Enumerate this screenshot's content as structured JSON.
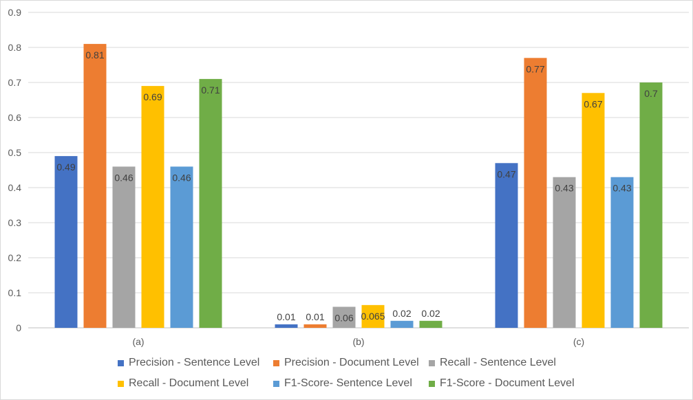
{
  "chart_data": {
    "type": "bar",
    "title": "",
    "xlabel": "",
    "ylabel": "",
    "ylim": [
      0,
      0.9
    ],
    "yticks": [
      "0",
      "0.1",
      "0.2",
      "0.3",
      "0.4",
      "0.5",
      "0.6",
      "0.7",
      "0.8",
      "0.9"
    ],
    "grid": true,
    "legend_position": "bottom",
    "categories": [
      "(a)",
      "(b)",
      "(c)"
    ],
    "series": [
      {
        "name": "Precision - Sentence Level",
        "color": "#4472c4",
        "values": [
          0.49,
          0.01,
          0.47
        ],
        "labels": [
          "0.49",
          "0.01",
          "0.47"
        ]
      },
      {
        "name": "Precision - Document Level",
        "color": "#ed7d31",
        "values": [
          0.81,
          0.01,
          0.77
        ],
        "labels": [
          "0.81",
          "0.01",
          "0.77"
        ]
      },
      {
        "name": "Recall - Sentence Level",
        "color": "#a5a5a5",
        "values": [
          0.46,
          0.06,
          0.43
        ],
        "labels": [
          "0.46",
          "0.06",
          "0.43"
        ]
      },
      {
        "name": "Recall - Document Level",
        "color": "#ffc000",
        "values": [
          0.69,
          0.065,
          0.67
        ],
        "labels": [
          "0.69",
          "0.065",
          "0.67"
        ]
      },
      {
        "name": "F1-Score- Sentence Level",
        "color": "#5b9bd5",
        "values": [
          0.46,
          0.02,
          0.43
        ],
        "labels": [
          "0.46",
          "0.02",
          "0.43"
        ]
      },
      {
        "name": "F1-Score - Document Level",
        "color": "#70ad47",
        "values": [
          0.71,
          0.02,
          0.7
        ],
        "labels": [
          "0.71",
          "0.02",
          "0.7"
        ]
      }
    ]
  }
}
